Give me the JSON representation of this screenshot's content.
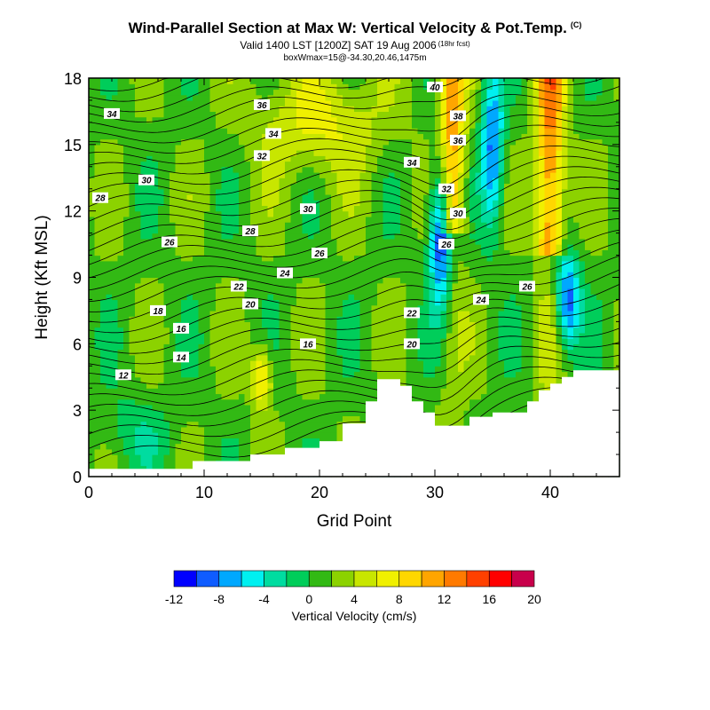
{
  "chart_data": {
    "type": "heatmap",
    "title": "Wind-Parallel Section at Max W: Vertical Velocity & Pot.Temp.",
    "title_mark": "(C)",
    "subtitle": "Valid 1400 LST [1200Z] SAT 19 Aug 2006",
    "subtitle_note": "(18hr fcst)",
    "subtitle2": "boxWmax=15@-34.30,20.46,1475m",
    "xlabel": "Grid Point",
    "ylabel": "Height (Kft MSL)",
    "xlim": [
      0,
      46
    ],
    "ylim": [
      0,
      18
    ],
    "xticks": [
      0,
      10,
      20,
      30,
      40
    ],
    "yticks": [
      0,
      3,
      6,
      9,
      12,
      15,
      18
    ],
    "colorbar": {
      "label": "Vertical Velocity (cm/s)",
      "tick_labels": [
        -12,
        -8,
        -4,
        0,
        4,
        8,
        12,
        16,
        20
      ],
      "bins": [
        -12,
        -10,
        -8,
        -6,
        -4,
        -2,
        0,
        2,
        4,
        6,
        8,
        10,
        12,
        14,
        16,
        18,
        20
      ],
      "colors": [
        "#0000ff",
        "#0f5cff",
        "#00a8ff",
        "#00f0f0",
        "#00dca0",
        "#00cd5a",
        "#32b914",
        "#8cd200",
        "#c8e600",
        "#f0f000",
        "#ffd700",
        "#ffa500",
        "#ff7a00",
        "#ff4000",
        "#ff0000",
        "#c8004b"
      ]
    },
    "terrain_height": [
      [
        0,
        0.35
      ],
      [
        9,
        0.35
      ],
      [
        9,
        0.7
      ],
      [
        14,
        0.7
      ],
      [
        14,
        1.0
      ],
      [
        17,
        1.0
      ],
      [
        17,
        1.3
      ],
      [
        20,
        1.3
      ],
      [
        20,
        1.6
      ],
      [
        22,
        1.6
      ],
      [
        22,
        2.4
      ],
      [
        24,
        2.4
      ],
      [
        24,
        3.4
      ],
      [
        25,
        3.4
      ],
      [
        25,
        4.4
      ],
      [
        27,
        4.4
      ],
      [
        27,
        4.1
      ],
      [
        28,
        4.1
      ],
      [
        28,
        3.4
      ],
      [
        29,
        3.4
      ],
      [
        29,
        2.9
      ],
      [
        30,
        2.9
      ],
      [
        30,
        2.3
      ],
      [
        33,
        2.3
      ],
      [
        33,
        2.7
      ],
      [
        35,
        2.7
      ],
      [
        35,
        2.9
      ],
      [
        38,
        2.9
      ],
      [
        38,
        3.4
      ],
      [
        39,
        3.4
      ],
      [
        39,
        3.9
      ],
      [
        40,
        3.9
      ],
      [
        40,
        4.2
      ],
      [
        41,
        4.2
      ],
      [
        41,
        4.5
      ],
      [
        42,
        4.5
      ],
      [
        42,
        4.8
      ],
      [
        46,
        4.8
      ]
    ],
    "contour_labels": [
      {
        "x": 3,
        "y": 4.6,
        "text": "12"
      },
      {
        "x": 8,
        "y": 5.4,
        "text": "14"
      },
      {
        "x": 8,
        "y": 6.7,
        "text": "16"
      },
      {
        "x": 6,
        "y": 7.5,
        "text": "18"
      },
      {
        "x": 14,
        "y": 7.8,
        "text": "20"
      },
      {
        "x": 13,
        "y": 8.6,
        "text": "22"
      },
      {
        "x": 17,
        "y": 9.2,
        "text": "24"
      },
      {
        "x": 7,
        "y": 10.6,
        "text": "26"
      },
      {
        "x": 14,
        "y": 11.1,
        "text": "28"
      },
      {
        "x": 5,
        "y": 13.4,
        "text": "30"
      },
      {
        "x": 15,
        "y": 14.5,
        "text": "32"
      },
      {
        "x": 16,
        "y": 15.5,
        "text": "34"
      },
      {
        "x": 15,
        "y": 16.8,
        "text": "36"
      },
      {
        "x": 2,
        "y": 16.4,
        "text": "34"
      },
      {
        "x": 1,
        "y": 12.6,
        "text": "28"
      },
      {
        "x": 19,
        "y": 6.0,
        "text": "16"
      },
      {
        "x": 20,
        "y": 10.1,
        "text": "26"
      },
      {
        "x": 19,
        "y": 12.1,
        "text": "30"
      },
      {
        "x": 28,
        "y": 7.4,
        "text": "22"
      },
      {
        "x": 28,
        "y": 6.0,
        "text": "20"
      },
      {
        "x": 28,
        "y": 14.2,
        "text": "34"
      },
      {
        "x": 31,
        "y": 13.0,
        "text": "32"
      },
      {
        "x": 32,
        "y": 11.9,
        "text": "30"
      },
      {
        "x": 31,
        "y": 10.5,
        "text": "26"
      },
      {
        "x": 34,
        "y": 8.0,
        "text": "24"
      },
      {
        "x": 38,
        "y": 8.6,
        "text": "26"
      },
      {
        "x": 32,
        "y": 15.2,
        "text": "36"
      },
      {
        "x": 32,
        "y": 16.3,
        "text": "38"
      },
      {
        "x": 30,
        "y": 17.6,
        "text": "40"
      }
    ]
  }
}
